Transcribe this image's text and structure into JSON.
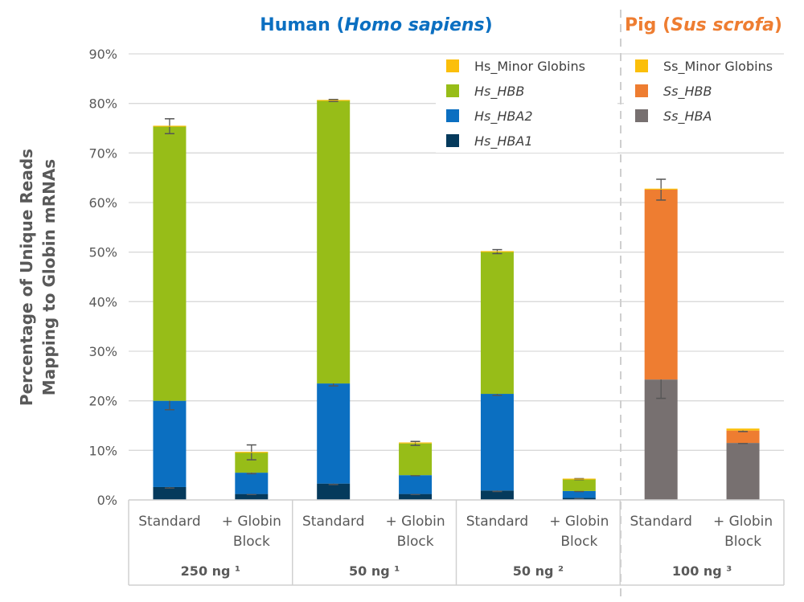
{
  "chart_data": {
    "type": "bar",
    "stacked": true,
    "panel_titles": [
      {
        "prefix": "Human (",
        "italic": "Homo sapiens",
        "suffix": ")",
        "color": "#0b6fc1"
      },
      {
        "prefix": "Pig (",
        "italic": "Sus scrofa",
        "suffix": ")",
        "color": "#ee7d31"
      }
    ],
    "ylabel": [
      "Percentage of Unique Reads",
      "Mapping to Globin mRNAs"
    ],
    "ylim": [
      0,
      90
    ],
    "yticks": [
      "0%",
      "10%",
      "20%",
      "30%",
      "40%",
      "50%",
      "60%",
      "70%",
      "80%",
      "90%"
    ],
    "grid": true,
    "categories": [
      [
        "Standard"
      ],
      [
        "+ Globin",
        "Block"
      ],
      [
        "Standard"
      ],
      [
        "+ Globin",
        "Block"
      ],
      [
        "Standard"
      ],
      [
        "+ Globin",
        "Block"
      ],
      [
        "Standard"
      ],
      [
        "+ Globin",
        "Block"
      ]
    ],
    "groups": [
      "250 ng ¹",
      "50 ng ¹",
      "50 ng ²",
      "100 ng ³"
    ],
    "series": [
      {
        "name": "Hs_HBA1",
        "italic": true,
        "color": "#053a5c",
        "values": [
          2.6,
          1.2,
          3.3,
          1.2,
          1.9,
          0.4,
          null,
          null
        ],
        "errors": [
          0.2,
          0.1,
          0.2,
          0.1,
          0.2,
          0.1,
          null,
          null
        ]
      },
      {
        "name": "Hs_HBA2",
        "italic": true,
        "color": "#0b6fc1",
        "values": [
          17.4,
          4.3,
          20.2,
          3.8,
          19.5,
          1.4,
          null,
          null
        ],
        "errors": [
          1.8,
          0.2,
          0.5,
          0.1,
          0.3,
          0.1,
          null,
          null
        ]
      },
      {
        "name": "Hs_HBB",
        "italic": true,
        "color": "#97bd18",
        "values": [
          55.4,
          4.1,
          57.1,
          6.4,
          28.7,
          2.4,
          null,
          null
        ],
        "errors": [
          1.5,
          1.5,
          0.2,
          0.4,
          0.4,
          0.1,
          null,
          null
        ]
      },
      {
        "name": "Hs_Minor Globins",
        "italic": false,
        "color": "#fbbf0a",
        "values": [
          0.1,
          0.1,
          0.1,
          0.2,
          0.1,
          0.1,
          null,
          null
        ],
        "errors": [
          null,
          null,
          null,
          null,
          null,
          null,
          null,
          null
        ]
      },
      {
        "name": "Ss_HBA",
        "italic": true,
        "color": "#777070",
        "values": [
          null,
          null,
          null,
          null,
          null,
          null,
          24.3,
          11.5
        ],
        "errors": [
          null,
          null,
          null,
          null,
          null,
          null,
          3.8,
          0.1
        ]
      },
      {
        "name": "Ss_HBB",
        "italic": true,
        "color": "#ee7d31",
        "values": [
          null,
          null,
          null,
          null,
          null,
          null,
          38.3,
          2.5
        ],
        "errors": [
          null,
          null,
          null,
          null,
          null,
          null,
          2.1,
          0.2
        ]
      },
      {
        "name": "Ss_Minor Globins",
        "italic": false,
        "color": "#fbbf0a",
        "values": [
          null,
          null,
          null,
          null,
          null,
          null,
          0.2,
          0.4
        ],
        "errors": [
          null,
          null,
          null,
          null,
          null,
          null,
          null,
          null
        ]
      }
    ],
    "legend": [
      {
        "column": "human",
        "items": [
          "Hs_Minor Globins",
          "Hs_HBB",
          "Hs_HBA2",
          "Hs_HBA1"
        ]
      },
      {
        "column": "pig",
        "items": [
          "Ss_Minor Globins",
          "Ss_HBB",
          "Ss_HBA"
        ]
      }
    ],
    "legend_placement": "top-right"
  }
}
